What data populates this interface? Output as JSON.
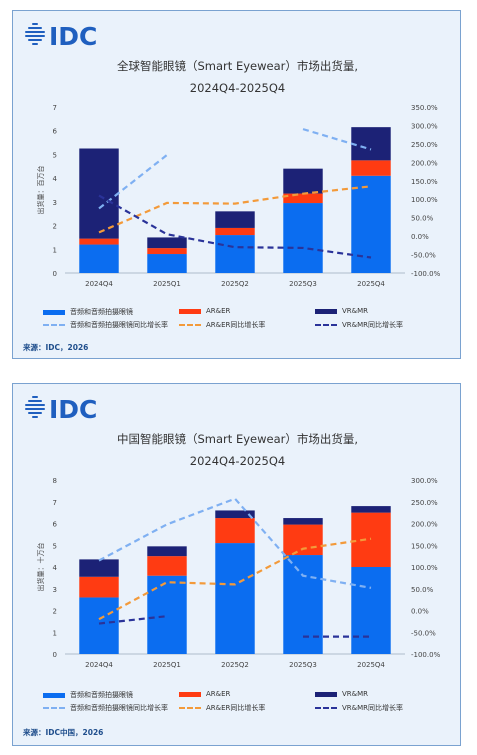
{
  "colors": {
    "audio": "#0b6df0",
    "ar": "#ff3b12",
    "vr": "#1c2276",
    "audio_line": "#7fb0f2",
    "ar_line": "#f39a3a",
    "vr_line": "#2a3399",
    "logo": "#1f5fbf"
  },
  "panels": [
    {
      "logo_text": "IDC",
      "title_line1": "全球智能眼镜（Smart Eyewear）市场出货量,",
      "title_line2": "2024Q4-2025Q4",
      "legend": {
        "audio": "音频和音频拍摄眼镜",
        "ar": "AR&ER",
        "vr": "VR&MR",
        "audio_yoy": "音频和音频拍摄眼镜同比增长率",
        "ar_yoy": "AR&ER同比增长率",
        "vr_yoy": "VR&MR同比增长率"
      },
      "source": "来源：IDC，2026"
    },
    {
      "logo_text": "IDC",
      "title_line1": "中国智能眼镜（Smart Eyewear）市场出货量,",
      "title_line2": "2024Q4-2025Q4",
      "legend": {
        "audio": "音频和音频拍摄眼镜",
        "ar": "AR&ER",
        "vr": "VR&MR",
        "audio_yoy": "音频和音频拍摄眼镜同比增长率",
        "ar_yoy": "AR&ER同比增长率",
        "vr_yoy": "VR&MR同比增长率"
      },
      "source": "来源：IDC中国，2026"
    }
  ],
  "chart_data": [
    {
      "type": "bar",
      "stacked": true,
      "categories": [
        "2024Q4",
        "2025Q1",
        "2025Q2",
        "2025Q3",
        "2025Q4"
      ],
      "ylabel": "出货量：百万台",
      "ylim": [
        0,
        7
      ],
      "yticks": [
        "0",
        "1",
        "2",
        "3",
        "4",
        "5",
        "6",
        "7"
      ],
      "y2lim": [
        -100,
        350
      ],
      "y2ticks": [
        "-100.0%",
        "-50.0%",
        "0.0%",
        "50.0%",
        "100.0%",
        "150.0%",
        "200.0%",
        "250.0%",
        "300.0%",
        "350.0%"
      ],
      "series": [
        {
          "name": "音频和音频拍摄眼镜",
          "values": [
            1.2,
            0.8,
            1.6,
            2.95,
            4.1
          ]
        },
        {
          "name": "AR&ER",
          "values": [
            0.25,
            0.25,
            0.3,
            0.4,
            0.65
          ]
        },
        {
          "name": "VR&MR",
          "values": [
            3.8,
            0.45,
            0.7,
            1.05,
            1.4
          ]
        }
      ],
      "line_series": [
        {
          "name": "音频和音频拍摄眼镜同比增长率",
          "values": [
            75,
            220,
            null,
            290,
            235
          ]
        },
        {
          "name": "AR&ER同比增长率",
          "values": [
            10,
            90,
            88,
            115,
            135
          ]
        },
        {
          "name": "VR&MR同比增长率",
          "values": [
            110,
            5,
            -30,
            -32,
            -58
          ]
        }
      ]
    },
    {
      "type": "bar",
      "stacked": true,
      "categories": [
        "2024Q4",
        "2025Q1",
        "2025Q2",
        "2025Q3",
        "2025Q4"
      ],
      "ylabel": "出货量：十万台",
      "ylim": [
        0,
        8
      ],
      "yticks": [
        "0",
        "1",
        "2",
        "3",
        "4",
        "5",
        "6",
        "7",
        "8"
      ],
      "y2lim": [
        -100,
        300
      ],
      "y2ticks": [
        "-100.0%",
        "-50.0%",
        "0.0%",
        "50.0%",
        "100.0%",
        "150.0%",
        "200.0%",
        "250.0%",
        "300.0%"
      ],
      "series": [
        {
          "name": "音频和音频拍摄眼镜",
          "values": [
            2.6,
            3.6,
            5.1,
            4.55,
            4.0
          ]
        },
        {
          "name": "AR&ER",
          "values": [
            0.95,
            0.9,
            1.15,
            1.4,
            2.5
          ]
        },
        {
          "name": "VR&MR",
          "values": [
            0.8,
            0.45,
            0.35,
            0.3,
            0.3
          ]
        }
      ],
      "line_series": [
        {
          "name": "音频和音频拍摄眼镜同比增长率",
          "values": [
            115,
            198,
            257,
            80,
            52
          ]
        },
        {
          "name": "AR&ER同比增长率",
          "values": [
            -20,
            65,
            60,
            142,
            165
          ]
        },
        {
          "name": "VR&MR同比增长率",
          "values": [
            -30,
            -13,
            null,
            -60,
            -60
          ]
        }
      ]
    }
  ]
}
